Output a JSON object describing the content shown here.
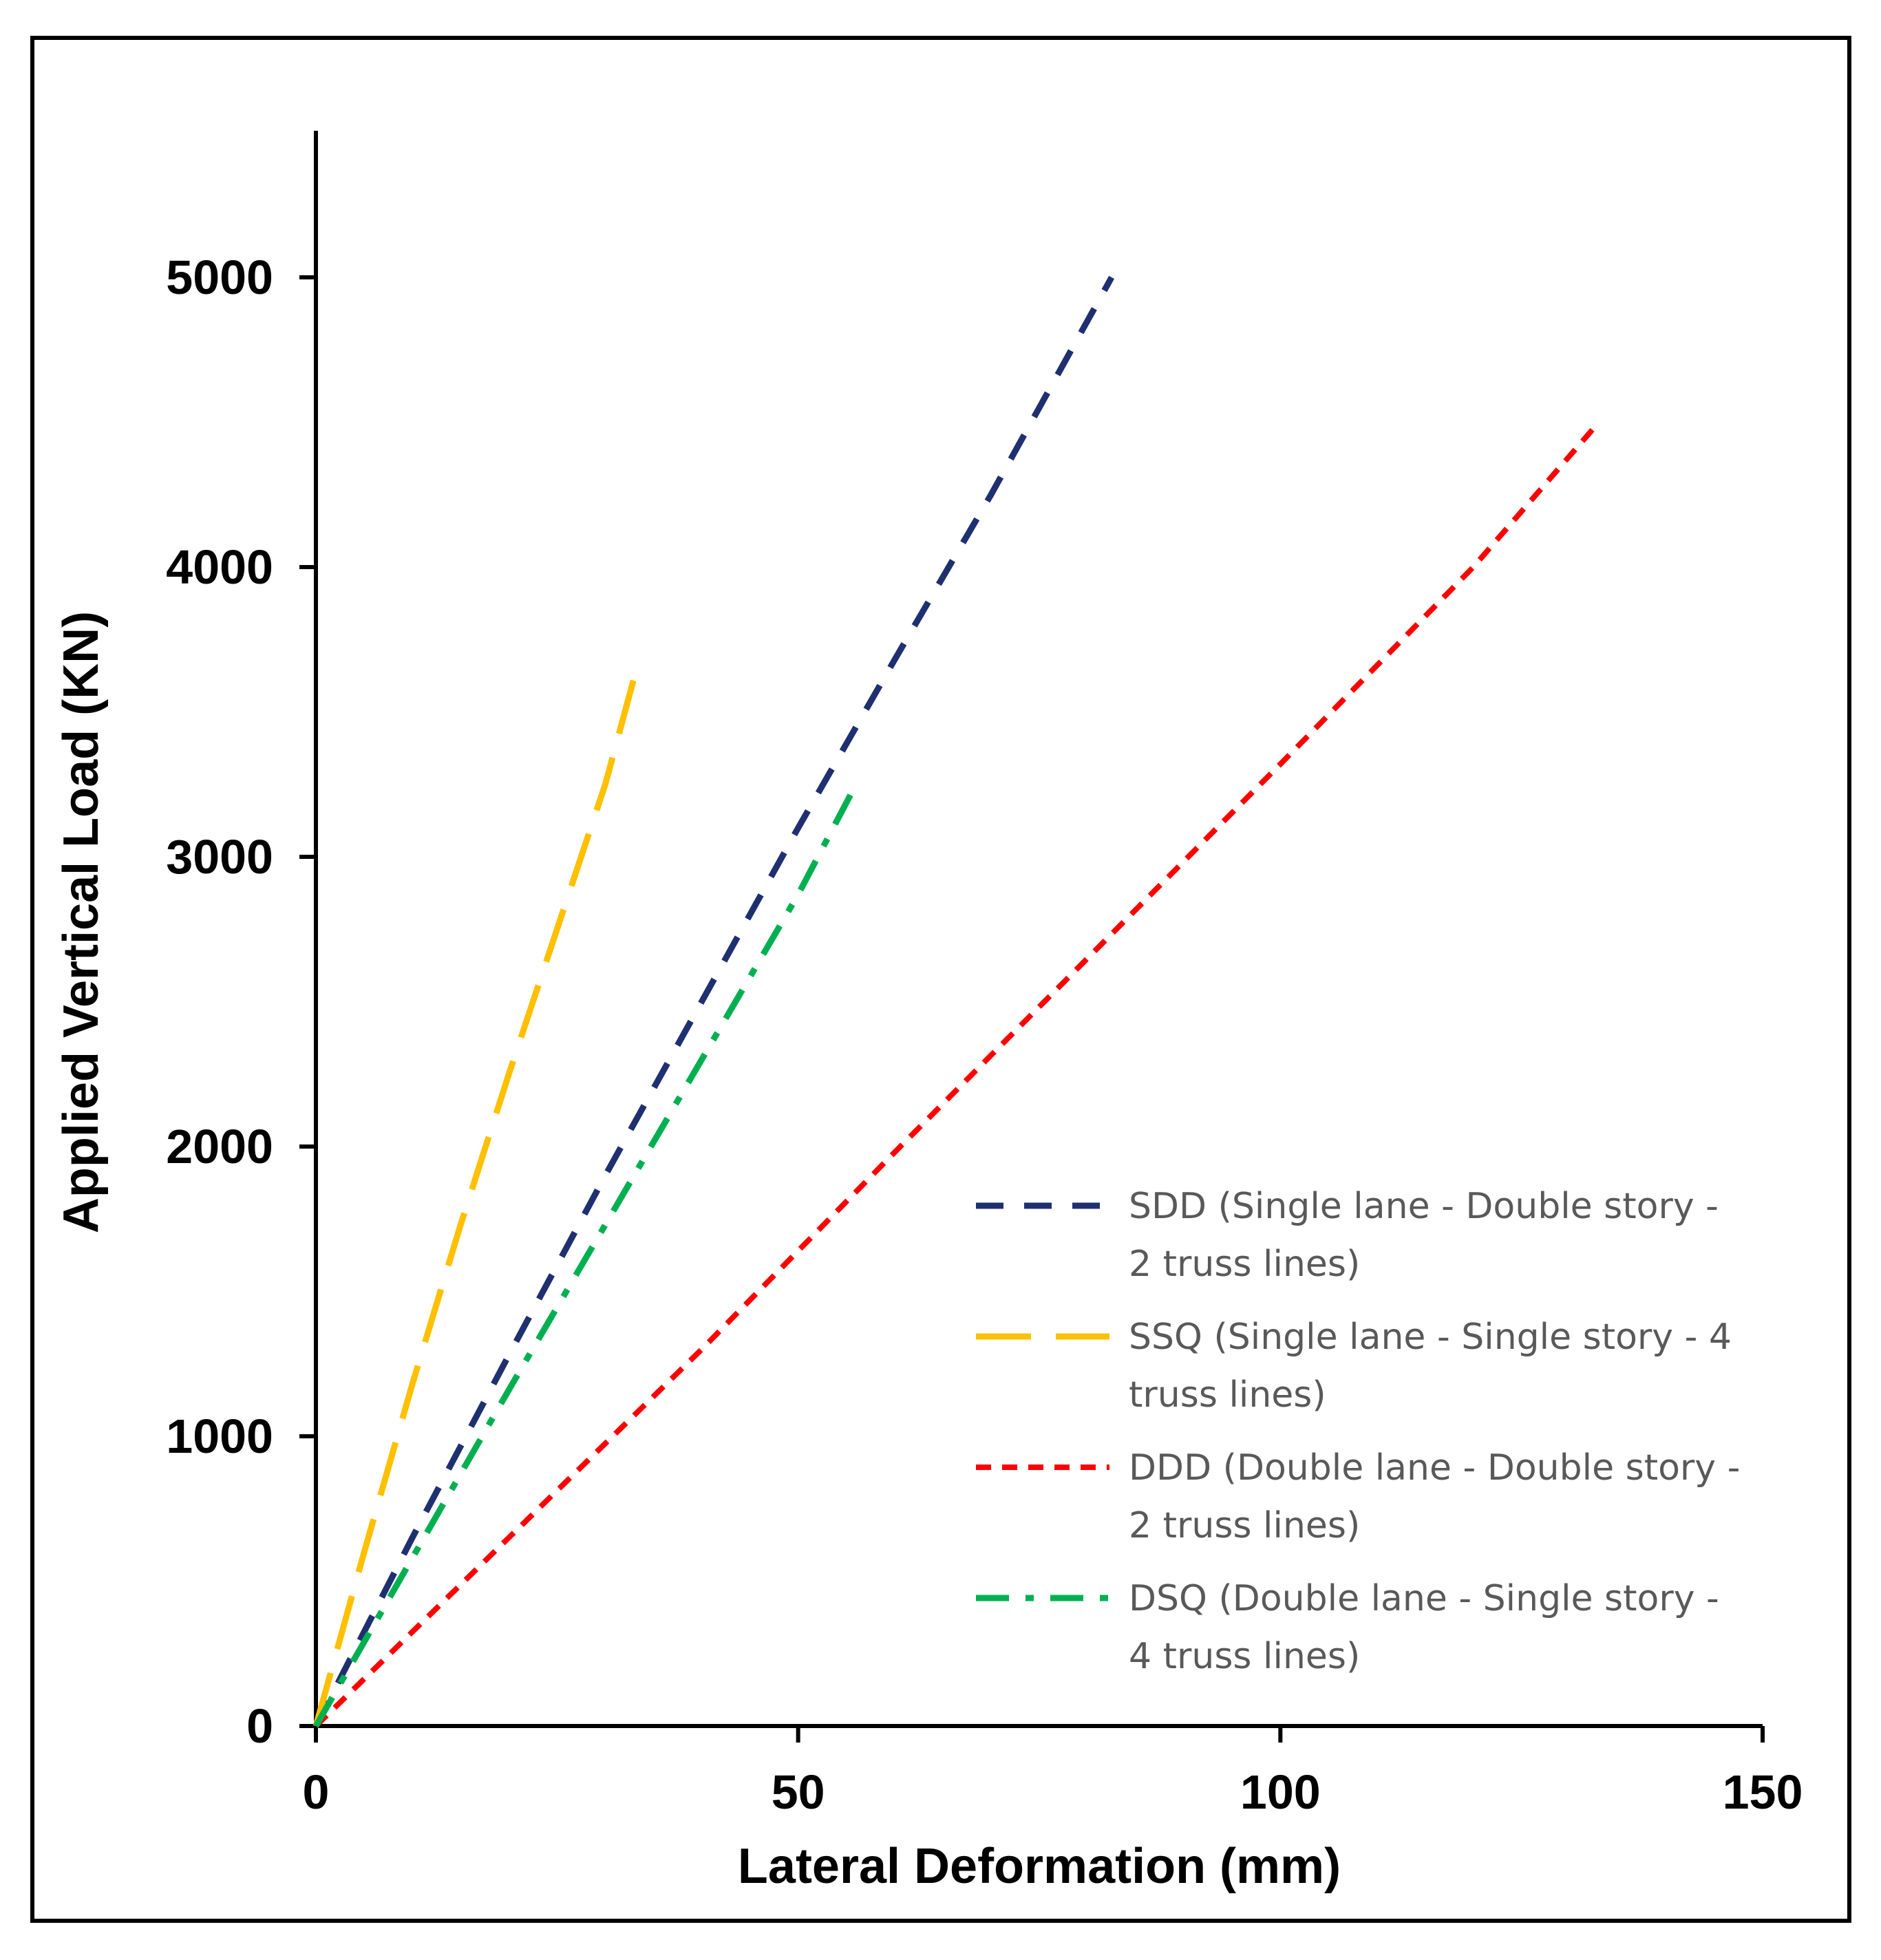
{
  "chart_data": {
    "type": "line",
    "title": "",
    "xlabel": "Lateral Deformation (mm)",
    "ylabel": "Applied Vertical Load (KN)",
    "xlim": [
      0,
      150
    ],
    "ylim": [
      0,
      5500
    ],
    "xticks": [
      0,
      50,
      100,
      150
    ],
    "yticks": [
      0,
      1000,
      2000,
      3000,
      4000,
      5000
    ],
    "grid": false,
    "legend_position": "right",
    "series": [
      {
        "id": "SDD",
        "name_lines": [
          "SDD (Single lane - Double story -",
          "2 truss lines)"
        ],
        "color": "#1f3070",
        "dash": "long-dash",
        "points": [
          [
            0,
            0
          ],
          [
            10,
            650
          ],
          [
            20,
            1280
          ],
          [
            30,
            1900
          ],
          [
            40,
            2500
          ],
          [
            50,
            3100
          ],
          [
            60,
            3680
          ],
          [
            70,
            4250
          ],
          [
            82.5,
            5000
          ]
        ]
      },
      {
        "id": "SSQ",
        "name_lines": [
          "SSQ (Single lane - Single story - 4",
          "truss lines)"
        ],
        "color": "#ffc000",
        "dash": "very-long-dash",
        "points": [
          [
            0,
            0
          ],
          [
            5,
            600
          ],
          [
            10,
            1180
          ],
          [
            15,
            1730
          ],
          [
            20,
            2250
          ],
          [
            25,
            2750
          ],
          [
            30,
            3250
          ],
          [
            33.5,
            3680
          ]
        ]
      },
      {
        "id": "DDD",
        "name_lines": [
          "DDD (Double lane - Double story -",
          "2 truss lines)"
        ],
        "color": "#ff0000",
        "dash": "short-dash",
        "points": [
          [
            0,
            0
          ],
          [
            20,
            650
          ],
          [
            40,
            1300
          ],
          [
            60,
            1980
          ],
          [
            80,
            2650
          ],
          [
            100,
            3320
          ],
          [
            120,
            4000
          ],
          [
            132.5,
            4480
          ]
        ]
      },
      {
        "id": "DSQ",
        "name_lines": [
          "DSQ (Double lane - Single story -",
          "4 truss lines)"
        ],
        "color": "#00b050",
        "dash": "dash-dot",
        "points": [
          [
            0,
            0
          ],
          [
            10,
            580
          ],
          [
            20,
            1160
          ],
          [
            30,
            1730
          ],
          [
            40,
            2300
          ],
          [
            50,
            2870
          ],
          [
            56,
            3250
          ]
        ]
      }
    ]
  }
}
